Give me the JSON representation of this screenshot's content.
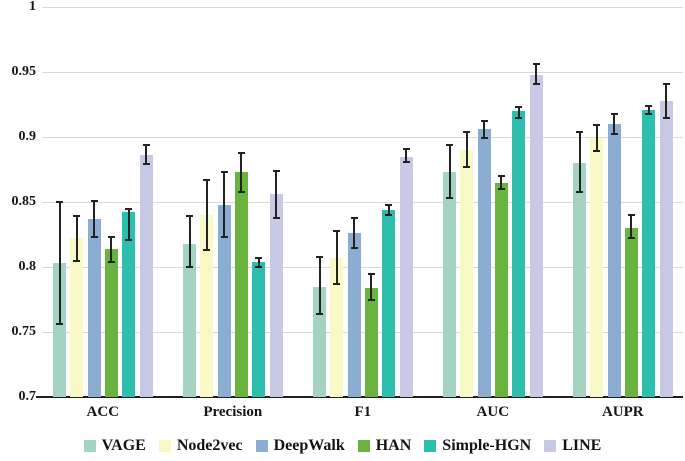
{
  "chart_data": {
    "type": "bar",
    "title": "",
    "xlabel": "",
    "ylabel": "",
    "categories": [
      "ACC",
      "Precision",
      "F1",
      "AUC",
      "AUPR"
    ],
    "series": [
      {
        "name": "VAGE",
        "color": "#a5d3c2",
        "values": [
          0.803,
          0.818,
          0.785,
          0.873,
          0.88
        ],
        "err_low": [
          0.756,
          0.8,
          0.764,
          0.853,
          0.858
        ],
        "err_high": [
          0.85,
          0.839,
          0.808,
          0.894,
          0.904
        ]
      },
      {
        "name": "Node2vec",
        "color": "#f9f9c5",
        "values": [
          0.822,
          0.84,
          0.807,
          0.89,
          0.899
        ],
        "err_low": [
          0.805,
          0.813,
          0.787,
          0.877,
          0.889
        ],
        "err_high": [
          0.839,
          0.867,
          0.828,
          0.904,
          0.909
        ]
      },
      {
        "name": "DeepWalk",
        "color": "#8badd1",
        "values": [
          0.837,
          0.848,
          0.826,
          0.906,
          0.91
        ],
        "err_low": [
          0.823,
          0.823,
          0.815,
          0.899,
          0.902
        ],
        "err_high": [
          0.851,
          0.873,
          0.838,
          0.912,
          0.918
        ]
      },
      {
        "name": "HAN",
        "color": "#6ab33e",
        "values": [
          0.814,
          0.873,
          0.784,
          0.865,
          0.83
        ],
        "err_low": [
          0.804,
          0.858,
          0.775,
          0.86,
          0.822
        ],
        "err_high": [
          0.823,
          0.888,
          0.795,
          0.87,
          0.84
        ]
      },
      {
        "name": "Simple-HGN",
        "color": "#2dbfae",
        "values": [
          0.842,
          0.804,
          0.844,
          0.92,
          0.921
        ],
        "err_low": [
          0.821,
          0.8,
          0.84,
          0.915,
          0.918
        ],
        "err_high": [
          0.845,
          0.807,
          0.848,
          0.923,
          0.924
        ]
      },
      {
        "name": "LINE",
        "color": "#c7c9e5",
        "values": [
          0.886,
          0.856,
          0.885,
          0.948,
          0.928
        ],
        "err_low": [
          0.879,
          0.838,
          0.881,
          0.941,
          0.915
        ],
        "err_high": [
          0.894,
          0.874,
          0.891,
          0.956,
          0.941
        ]
      }
    ],
    "ylim": [
      0.7,
      1.0
    ],
    "yticks": [
      {
        "label": "1",
        "value": 1.0
      },
      {
        "label": "0.95",
        "value": 0.95
      },
      {
        "label": "0.9",
        "value": 0.9
      },
      {
        "label": "0.85",
        "value": 0.85
      },
      {
        "label": "0.8",
        "value": 0.8
      },
      {
        "label": "0.75",
        "value": 0.75
      },
      {
        "label": "0.7",
        "value": 0.7
      }
    ],
    "grid": true,
    "error_bars": true,
    "legend_position": "bottom",
    "colors": {
      "gridline": "#d8d8d8",
      "axis": "#1f1f1f",
      "error_bar": "#222222",
      "text": "#161616",
      "background": "#ffffff"
    }
  }
}
